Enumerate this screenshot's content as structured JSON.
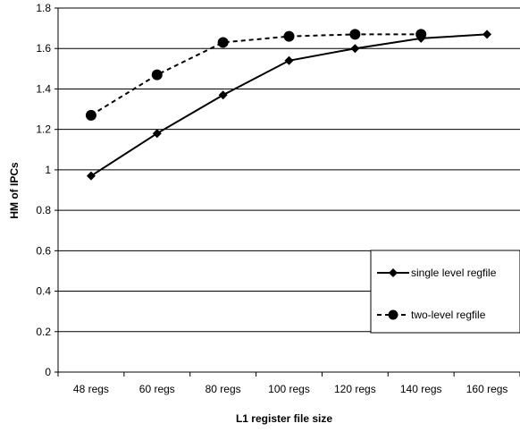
{
  "chart_data": {
    "type": "line",
    "title": "",
    "xlabel": "L1 register file size",
    "ylabel": "HM of IPCs",
    "ylim": [
      0,
      1.8
    ],
    "yticks": [
      "0",
      "0.2",
      "0.4",
      "0.6",
      "0.8",
      "1",
      "1.2",
      "1.4",
      "1.6",
      "1.8"
    ],
    "categories": [
      "48 regs",
      "60 regs",
      "80 regs",
      "100 regs",
      "120 regs",
      "140 regs",
      "160 regs"
    ],
    "grid": "horizontal",
    "legend_position": "lower-right",
    "series": [
      {
        "name": "single level regfile",
        "values": [
          0.97,
          1.18,
          1.37,
          1.54,
          1.6,
          1.65,
          1.67
        ],
        "color": "#000000",
        "line_style": "solid",
        "marker": "diamond"
      },
      {
        "name": "two-level regfile",
        "values": [
          1.27,
          1.47,
          1.63,
          1.66,
          1.67,
          1.67,
          null
        ],
        "color": "#000000",
        "line_style": "dashed",
        "marker": "circle"
      }
    ]
  }
}
